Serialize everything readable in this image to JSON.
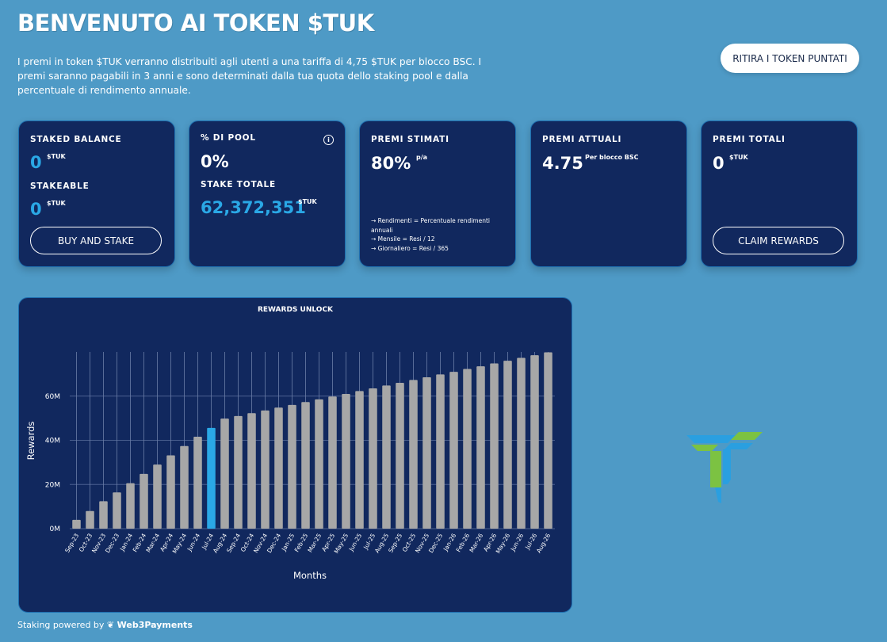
{
  "header": {
    "title": "BENVENUTO AI TOKEN $TUK",
    "intro": "I premi in token $TUK verranno distribuiti agli utenti a una tariffa di 4,75 $TUK per blocco BSC. I premi saranno pagabili in 3 anni e sono determinati dalla tua quota dello staking pool e dalla percentuale di rendimento annuale.",
    "withdraw_label": "RITIRA I TOKEN PUNTATI"
  },
  "cards": {
    "staked": {
      "label": "STAKED BALANCE",
      "value": "0",
      "unit": "$TUK",
      "stakeable_label": "STAKEABLE",
      "stakeable_value": "0",
      "stakeable_unit": "$TUK",
      "button": "BUY AND STAKE"
    },
    "pool": {
      "label": "% DI POOL",
      "value": "0%",
      "total_label": "STAKE TOTALE",
      "total_value": "62,372,351",
      "total_unit": "$TUK",
      "info_icon": "info-icon"
    },
    "estimated": {
      "label": "PREMI STIMATI",
      "value": "80%",
      "unit": "p/a",
      "note1": "→ Rendimenti = Percentuale rendimenti",
      "note1b": "annuali",
      "note2": "→ Mensile = Resi / 12",
      "note3": "→ Giornaliero = Resi / 365"
    },
    "current": {
      "label": "PREMI ATTUALI",
      "value": "4.75",
      "unit": "Per blocco BSC"
    },
    "total": {
      "label": "PREMI TOTALI",
      "value": "0",
      "unit": "$TUK",
      "button": "CLAIM REWARDS"
    }
  },
  "footer": {
    "prefix": "Staking powered by",
    "brand": "Web3Payments"
  },
  "colors": {
    "bar": "#a7a7a7",
    "highlight": "#2aa8e6",
    "card_bg": "#11285e",
    "page_bg": "#4e9ac6",
    "logo_green": "#7cc242",
    "logo_blue": "#2a9fe0"
  },
  "chart_data": {
    "type": "bar",
    "title": "REWARDS UNLOCK",
    "xlabel": "Months",
    "ylabel": "Rewards",
    "ylim": [
      0,
      80000000
    ],
    "yticks": [
      "0M",
      "20M",
      "40M",
      "60M"
    ],
    "highlight_category": "Jul-24",
    "categories": [
      "Sep-23",
      "Oct-23",
      "Nov-23",
      "Dec-23",
      "Jan-24",
      "Feb-24",
      "Mar-24",
      "Apr-24",
      "May-24",
      "Jun-24",
      "Jul-24",
      "Aug-24",
      "Sep-24",
      "Oct-24",
      "Nov-24",
      "Dec-24",
      "Jan-25",
      "Feb-25",
      "Mar-25",
      "Apr-25",
      "May-25",
      "Jun-25",
      "Jul-25",
      "Aug-25",
      "Sep-25",
      "Oct-25",
      "Nov-25",
      "Dec-25",
      "Jan-26",
      "Feb-26",
      "Mar-26",
      "Apr-26",
      "May-26",
      "Jun-26",
      "Jul-26",
      "Aug-26"
    ],
    "values": [
      4000000,
      8000000,
      12400000,
      16400000,
      20600000,
      24800000,
      29000000,
      33200000,
      37400000,
      41600000,
      45600000,
      49800000,
      51000000,
      52300000,
      53500000,
      54800000,
      56000000,
      57300000,
      58500000,
      59800000,
      61000000,
      62300000,
      63500000,
      64800000,
      66000000,
      67300000,
      68500000,
      69800000,
      71000000,
      72300000,
      73500000,
      74800000,
      76000000,
      77300000,
      78500000,
      79800000
    ]
  }
}
